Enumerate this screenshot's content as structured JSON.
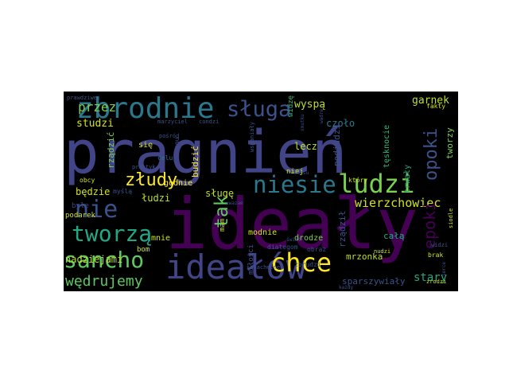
{
  "colors": {
    "background": "#000000",
    "page": "#ffffff"
  },
  "words": [
    {
      "text": "pragnień",
      "color": "#414487"
    },
    {
      "text": "ideały",
      "color": "#440154"
    },
    {
      "text": "zbrodnie",
      "color": "#2a788e"
    },
    {
      "text": "sługa",
      "color": "#3b528b"
    },
    {
      "text": "niesie",
      "color": "#2a788e"
    },
    {
      "text": "ludzi",
      "color": "#7ad151"
    },
    {
      "text": "ideałów",
      "color": "#414487"
    },
    {
      "text": "sancho",
      "color": "#5ec962"
    },
    {
      "text": "chce",
      "color": "#fde725"
    },
    {
      "text": "tworzą",
      "color": "#22a884"
    },
    {
      "text": "nie",
      "color": "#3b528b"
    },
    {
      "text": "złudy",
      "color": "#fde725"
    },
    {
      "text": "przez",
      "color": "#7ad151"
    },
    {
      "text": "opoki",
      "color": "#3b528b"
    },
    {
      "text": "wędrujemy",
      "color": "#5ec962"
    },
    {
      "text": "tak",
      "color": "#5ec962"
    },
    {
      "text": "wierzchowiec",
      "color": "#d2e21b"
    },
    {
      "text": "epoki",
      "color": "#440154"
    },
    {
      "text": "studzi",
      "color": "#d2e21b"
    },
    {
      "text": "garnek",
      "color": "#bddf26"
    },
    {
      "text": "wyspą",
      "color": "#bddf26"
    },
    {
      "text": "czoło",
      "color": "#2a788e"
    },
    {
      "text": "lecz",
      "color": "#bddf26"
    },
    {
      "text": "stary",
      "color": "#22a884"
    },
    {
      "text": "sługę",
      "color": "#bddf26"
    },
    {
      "text": "łudzi",
      "color": "#bddf26"
    },
    {
      "text": "będzie",
      "color": "#d2e21b"
    },
    {
      "text": "nadziejami",
      "color": "#bddf26"
    },
    {
      "text": "mrzonka",
      "color": "#bddf26"
    },
    {
      "text": "sparszywiały",
      "color": "#3b528b"
    },
    {
      "text": "całą",
      "color": "#22a884"
    },
    {
      "text": "tworzy",
      "color": "#7ad151"
    },
    {
      "text": "tęsknocie",
      "color": "#35b779"
    },
    {
      "text": "trwały",
      "color": "#22a884"
    },
    {
      "text": "podjudzi",
      "color": "#3b528b"
    },
    {
      "text": "rządzić",
      "color": "#7ad151"
    },
    {
      "text": "rządził",
      "color": "#3b528b"
    },
    {
      "text": "budzić",
      "color": "#fde725"
    },
    {
      "text": "godnie",
      "color": "#fde725"
    },
    {
      "text": "modnie",
      "color": "#d2e21b"
    },
    {
      "text": "drodze",
      "color": "#7ad151"
    },
    {
      "text": "mnie",
      "color": "#d2e21b"
    },
    {
      "text": "się",
      "color": "#d2e21b"
    },
    {
      "text": "niej",
      "color": "#d2e21b"
    },
    {
      "text": "mam",
      "color": "#d2e21b"
    },
    {
      "text": "bom",
      "color": "#d2e21b"
    },
    {
      "text": "byle",
      "color": "#414487"
    },
    {
      "text": "miłości",
      "color": "#3b528b"
    },
    {
      "text": "podarek",
      "color": "#d2e21b"
    },
    {
      "text": "obcy",
      "color": "#d2e21b"
    },
    {
      "text": "myślą",
      "color": "#3b528b"
    },
    {
      "text": "celu",
      "color": "#2a788e"
    },
    {
      "text": "snu",
      "color": "#3b528b"
    },
    {
      "text": "pośród",
      "color": "#3b528b"
    },
    {
      "text": "praktyk",
      "color": "#3b528b"
    },
    {
      "text": "marzyciel",
      "color": "#3b528b"
    },
    {
      "text": "condzi",
      "color": "#3b528b"
    },
    {
      "text": "wspaniały",
      "color": "#3b528b"
    },
    {
      "text": "wadre",
      "color": "#3b528b"
    },
    {
      "text": "widzę",
      "color": "#35b779"
    },
    {
      "text": "który",
      "color": "#d2e21b"
    },
    {
      "text": "obraz",
      "color": "#3b528b"
    },
    {
      "text": "świat",
      "color": "#3b528b"
    },
    {
      "text": "zbrudzi",
      "color": "#3b528b"
    },
    {
      "text": "szlachetne",
      "color": "#3b528b"
    },
    {
      "text": "diategom",
      "color": "#3b528b"
    },
    {
      "text": "każdy",
      "color": "#3b528b"
    },
    {
      "text": "brak",
      "color": "#d2e21b"
    },
    {
      "text": "zrodzi",
      "color": "#d2e21b"
    },
    {
      "text": "widzi",
      "color": "#3b528b"
    },
    {
      "text": "nudzi",
      "color": "#d2e21b"
    },
    {
      "text": "fakty",
      "color": "#d2e21b"
    },
    {
      "text": "siodle",
      "color": "#d2e21b"
    },
    {
      "text": "prawdziwej",
      "color": "#3b528b"
    },
    {
      "text": "uwazam",
      "color": "#3b528b"
    },
    {
      "text": "smutku",
      "color": "#3b528b"
    },
    {
      "text": "serce",
      "color": "#3b528b"
    },
    {
      "text": "sensu",
      "color": "#3b528b"
    }
  ]
}
